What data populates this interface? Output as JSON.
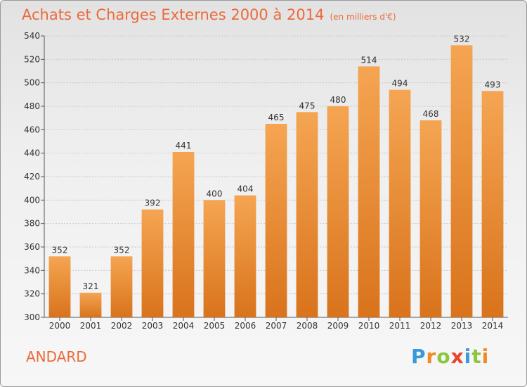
{
  "header": {
    "title": "Achats et Charges Externes 2000 à 2014",
    "unit": "(en milliers d'€)"
  },
  "location": "ANDARD",
  "brand": {
    "text": "Proxiti",
    "letters": [
      "P",
      "r",
      "o",
      "x",
      "i",
      "t",
      "i"
    ],
    "letter_colors": [
      "#3a9ad9",
      "#f08a24",
      "#8cc63f",
      "#e8432d",
      "#3a9ad9",
      "#8cc63f",
      "#f08a24"
    ]
  },
  "colors": {
    "bar_top": "#f5a552",
    "bar_bottom": "#d9731c",
    "title": "#ec6a3a"
  },
  "chart_data": {
    "type": "bar",
    "categories": [
      "2000",
      "2001",
      "2002",
      "2003",
      "2004",
      "2005",
      "2006",
      "2007",
      "2008",
      "2009",
      "2010",
      "2011",
      "2012",
      "2013",
      "2014"
    ],
    "values": [
      352,
      321,
      352,
      392,
      441,
      400,
      404,
      465,
      475,
      480,
      514,
      494,
      468,
      532,
      493
    ],
    "ylim": [
      300,
      540
    ],
    "yticks": [
      300,
      320,
      340,
      360,
      380,
      400,
      420,
      440,
      460,
      480,
      500,
      520,
      540
    ],
    "grid": true,
    "data_labels": true
  }
}
